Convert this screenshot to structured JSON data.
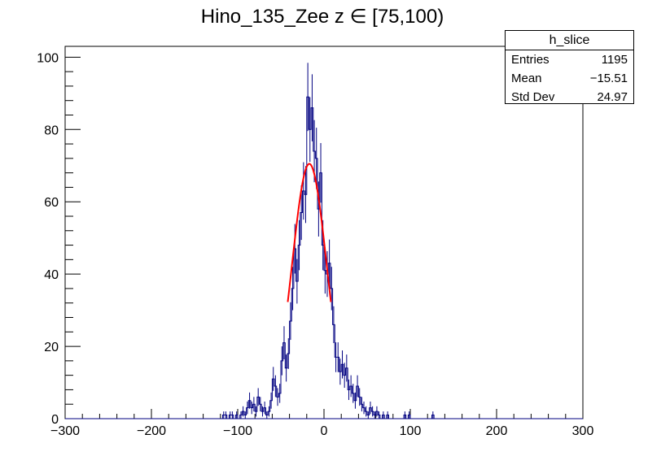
{
  "chart_data": {
    "type": "bar",
    "title": "Hino_135_Zee z  ∈ [75,100)",
    "xlabel": "",
    "ylabel": "",
    "xlim": [
      -300,
      300
    ],
    "ylim": [
      0,
      103
    ],
    "x_ticks": [
      -300,
      -200,
      -100,
      0,
      100,
      200,
      300
    ],
    "x_tick_labels": [
      "−300",
      "−200",
      "−100",
      "0",
      "100",
      "200",
      "300"
    ],
    "y_ticks": [
      0,
      20,
      40,
      60,
      80,
      100
    ],
    "y_tick_labels": [
      "0",
      "20",
      "40",
      "60",
      "80",
      "100"
    ],
    "bin_width": 2.5,
    "bins": [
      [
        -117.5,
        1
      ],
      [
        -115,
        1
      ],
      [
        -110,
        1
      ],
      [
        -107.5,
        1
      ],
      [
        -102.5,
        1
      ],
      [
        -97.5,
        1
      ],
      [
        -95,
        2
      ],
      [
        -92.5,
        1
      ],
      [
        -90,
        3
      ],
      [
        -87.5,
        5
      ],
      [
        -85,
        3
      ],
      [
        -82.5,
        4
      ],
      [
        -80,
        2
      ],
      [
        -77.5,
        6
      ],
      [
        -75,
        4
      ],
      [
        -72.5,
        2
      ],
      [
        -70,
        3
      ],
      [
        -67.5,
        1
      ],
      [
        -65,
        2
      ],
      [
        -62.5,
        5
      ],
      [
        -60,
        11
      ],
      [
        -57.5,
        9
      ],
      [
        -55,
        6
      ],
      [
        -52.5,
        7
      ],
      [
        -50,
        16
      ],
      [
        -47.5,
        21
      ],
      [
        -45,
        14
      ],
      [
        -42.5,
        18
      ],
      [
        -40,
        27
      ],
      [
        -37.5,
        36
      ],
      [
        -35,
        47
      ],
      [
        -32.5,
        38
      ],
      [
        -30,
        48
      ],
      [
        -27.5,
        57
      ],
      [
        -25,
        63
      ],
      [
        -22.5,
        62
      ],
      [
        -20,
        89
      ],
      [
        -17.5,
        80
      ],
      [
        -15,
        86
      ],
      [
        -12.5,
        74
      ],
      [
        -10,
        72
      ],
      [
        -7.5,
        58
      ],
      [
        -5,
        68
      ],
      [
        -2.5,
        48
      ],
      [
        0,
        41
      ],
      [
        2.5,
        40
      ],
      [
        5,
        43
      ],
      [
        7.5,
        36
      ],
      [
        10,
        26
      ],
      [
        12.5,
        17
      ],
      [
        15,
        17
      ],
      [
        17.5,
        13
      ],
      [
        20,
        15
      ],
      [
        22.5,
        12
      ],
      [
        25,
        14
      ],
      [
        27.5,
        8
      ],
      [
        30,
        9
      ],
      [
        32.5,
        7
      ],
      [
        35,
        5
      ],
      [
        37.5,
        9
      ],
      [
        40,
        6
      ],
      [
        42.5,
        4
      ],
      [
        45,
        3
      ],
      [
        47.5,
        2
      ],
      [
        50,
        1
      ],
      [
        52.5,
        3
      ],
      [
        55,
        2
      ],
      [
        57.5,
        1
      ],
      [
        60,
        2
      ],
      [
        62.5,
        1
      ],
      [
        67.5,
        1
      ],
      [
        72.5,
        1
      ],
      [
        92.5,
        1
      ],
      [
        97.5,
        1
      ],
      [
        125,
        1
      ]
    ],
    "fit": {
      "type": "gaussian",
      "range": [
        -42,
        8
      ],
      "constant": 70.5,
      "mean": -17,
      "sigma": 20,
      "color": "#ff0000"
    },
    "histogram_color": "#000080"
  },
  "stats": {
    "name": "h_slice",
    "rows": [
      {
        "label": "Entries",
        "value": "1195"
      },
      {
        "label": "Mean",
        "value": "−15.51"
      },
      {
        "label": "Std Dev",
        "value": "24.97"
      }
    ]
  }
}
